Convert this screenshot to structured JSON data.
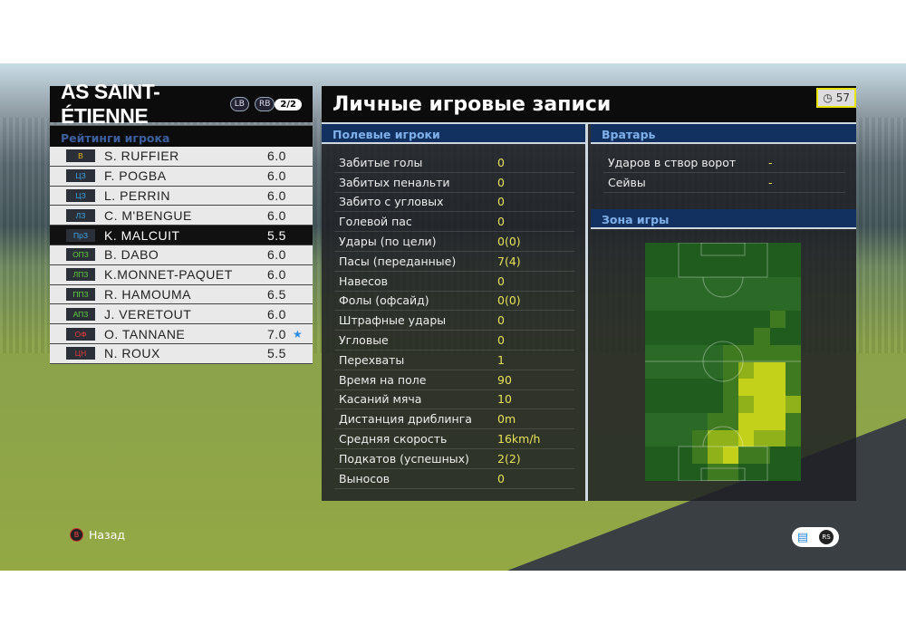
{
  "team": {
    "name": "AS SAINT-ÉTIENNE",
    "lb": "LB",
    "rb": "RB",
    "page": "2/2"
  },
  "ratings_title": "Рейтинги игрока",
  "players": [
    {
      "pos": "В",
      "pos_color": "#e8b800",
      "name": "S. RUFFIER",
      "rating": "6.0",
      "star": ""
    },
    {
      "pos": "ЦЗ",
      "pos_color": "#3fa6e8",
      "name": "F. POGBA",
      "rating": "6.0",
      "star": ""
    },
    {
      "pos": "ЦЗ",
      "pos_color": "#3fa6e8",
      "name": "L. PERRIN",
      "rating": "6.0",
      "star": ""
    },
    {
      "pos": "ЛЗ",
      "pos_color": "#3fa6e8",
      "name": "C. M'BENGUE",
      "rating": "6.0",
      "star": ""
    },
    {
      "pos": "ПрЗ",
      "pos_color": "#3fa6e8",
      "name": "K. MALCUIT",
      "rating": "5.5",
      "star": "",
      "selected": true
    },
    {
      "pos": "ОПЗ",
      "pos_color": "#5fd23a",
      "name": "B. DABO",
      "rating": "6.0",
      "star": ""
    },
    {
      "pos": "ЛПЗ",
      "pos_color": "#5fd23a",
      "name": "K.MONNET-PAQUET",
      "rating": "6.0",
      "star": ""
    },
    {
      "pos": "ППЗ",
      "pos_color": "#5fd23a",
      "name": "R. HAMOUMA",
      "rating": "6.5",
      "star": ""
    },
    {
      "pos": "АПЗ",
      "pos_color": "#5fd23a",
      "name": "J. VERETOUT",
      "rating": "6.0",
      "star": ""
    },
    {
      "pos": "ОФ",
      "pos_color": "#e83a3a",
      "name": "O. TANNANE",
      "rating": "7.0",
      "star": "★"
    },
    {
      "pos": "ЦН",
      "pos_color": "#e83a3a",
      "name": "N. ROUX",
      "rating": "5.5",
      "star": ""
    }
  ],
  "main_title": "Личные игровые записи",
  "timer": {
    "icon": "clock-icon",
    "value": "57"
  },
  "field_title": "Полевые игроки",
  "field_stats": [
    {
      "label": "Забитые голы",
      "value": "0"
    },
    {
      "label": "Забитых пенальти",
      "value": "0"
    },
    {
      "label": "Забито с угловых",
      "value": "0"
    },
    {
      "label": "Голевой пас",
      "value": "0"
    },
    {
      "label": "Удары (по цели)",
      "value": "0(0)"
    },
    {
      "label": "Пасы (переданные)",
      "value": "7(4)"
    },
    {
      "label": "Навесов",
      "value": "0"
    },
    {
      "label": "Фолы (офсайд)",
      "value": "0(0)"
    },
    {
      "label": "Штрафные удары",
      "value": "0"
    },
    {
      "label": "Угловые",
      "value": "0"
    },
    {
      "label": "Перехваты",
      "value": "1"
    },
    {
      "label": "Время на поле",
      "value": "90"
    },
    {
      "label": "Касаний мяча",
      "value": "10"
    },
    {
      "label": "Дистанция дриблинга",
      "value": "0m"
    },
    {
      "label": "Средняя скорость",
      "value": "16km/h"
    },
    {
      "label": "Подкатов (успешных)",
      "value": "2(2)"
    },
    {
      "label": "Выносов",
      "value": "0"
    }
  ],
  "gk_title": "Вратарь",
  "gk_stats": [
    {
      "label": "Ударов в створ ворот",
      "value": "-"
    },
    {
      "label": "Сейвы",
      "value": "-"
    }
  ],
  "zone_title": "Зона игры",
  "heatmap_levels": [
    [
      0,
      0,
      0,
      0,
      0,
      0,
      0,
      0,
      0,
      0
    ],
    [
      0,
      0,
      0,
      0,
      0,
      0,
      0,
      0,
      0,
      0
    ],
    [
      0,
      0,
      0,
      0,
      0,
      0,
      0,
      0,
      0,
      0
    ],
    [
      0,
      0,
      0,
      0,
      0,
      0,
      0,
      0,
      0,
      0
    ],
    [
      0,
      0,
      0,
      0,
      0,
      0,
      0,
      0,
      1,
      0
    ],
    [
      0,
      0,
      0,
      0,
      0,
      0,
      0,
      1,
      0,
      0
    ],
    [
      0,
      0,
      0,
      0,
      0,
      1,
      1,
      1,
      1,
      1
    ],
    [
      0,
      0,
      0,
      0,
      0,
      1,
      2,
      3,
      3,
      1
    ],
    [
      0,
      0,
      0,
      0,
      0,
      1,
      3,
      3,
      3,
      1
    ],
    [
      0,
      0,
      0,
      0,
      0,
      1,
      2,
      3,
      3,
      2
    ],
    [
      0,
      0,
      0,
      0,
      1,
      1,
      3,
      3,
      3,
      1
    ],
    [
      0,
      0,
      0,
      1,
      2,
      2,
      3,
      2,
      2,
      1
    ],
    [
      0,
      0,
      0,
      1,
      2,
      3,
      1,
      1,
      0,
      0
    ],
    [
      0,
      0,
      0,
      0,
      1,
      1,
      0,
      0,
      0,
      0
    ]
  ],
  "heatmap_colors": [
    "#1f5c1e",
    "#3f7a20",
    "#8fb21a",
    "#c3d11a"
  ],
  "footer": {
    "back_icon": "b-button-icon",
    "back_label": "Назад",
    "chat_icon": "chat-icon",
    "rs_icon": "rs-stick-icon",
    "rs_label": "RS"
  }
}
